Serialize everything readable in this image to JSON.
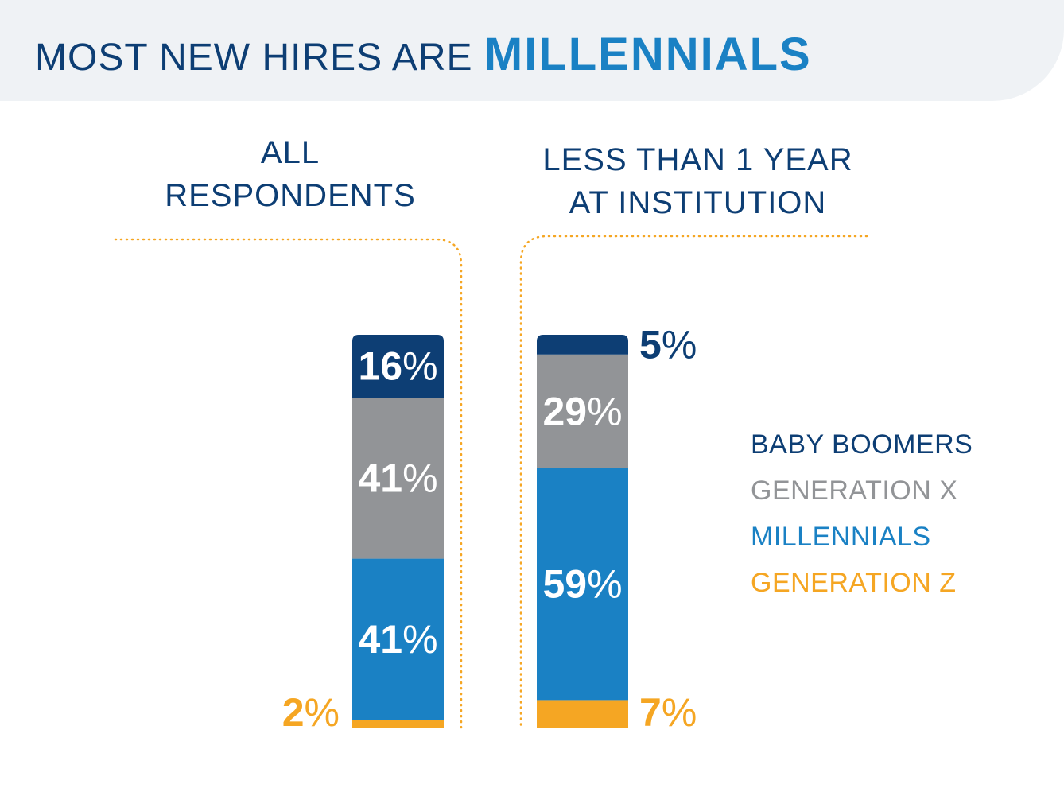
{
  "header": {
    "title_part1": "MOST NEW HIRES ARE",
    "title_part2": "MILLENNIALS"
  },
  "colors": {
    "baby_boomers": "#0d3e74",
    "generation_x": "#929497",
    "millennials": "#1a81c4",
    "generation_z": "#f5a623",
    "header_bg": "#eff2f5",
    "dotted_line": "#f5a623"
  },
  "chart_data": {
    "type": "bar",
    "stacked": true,
    "categories": [
      "ALL RESPONDENTS",
      "LESS THAN 1 YEAR AT INSTITUTION"
    ],
    "category_lines": [
      [
        "ALL",
        "RESPONDENTS"
      ],
      [
        "LESS THAN 1 YEAR",
        "AT INSTITUTION"
      ]
    ],
    "series": [
      {
        "name": "GENERATION Z",
        "values": [
          2,
          7
        ],
        "labels": [
          "2%",
          "7%"
        ],
        "color": "#f5a623"
      },
      {
        "name": "MILLENNIALS",
        "values": [
          41,
          59
        ],
        "labels": [
          "41%",
          "59%"
        ],
        "color": "#1a81c4"
      },
      {
        "name": "GENERATION X",
        "values": [
          41,
          29
        ],
        "labels": [
          "41%",
          "29%"
        ],
        "color": "#929497"
      },
      {
        "name": "BABY BOOMERS",
        "values": [
          16,
          5
        ],
        "labels": [
          "16%",
          "5%"
        ],
        "color": "#0d3e74"
      }
    ],
    "legend_order": [
      "BABY BOOMERS",
      "GENERATION X",
      "MILLENNIALS",
      "GENERATION Z"
    ],
    "legend_position": "right",
    "ylim": [
      0,
      100
    ],
    "grid": false
  }
}
